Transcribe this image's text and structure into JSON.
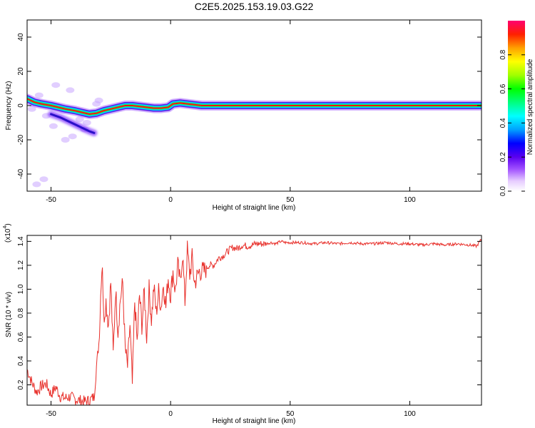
{
  "title": "C2E5.2025.153.19.03.G22",
  "colorbar": {
    "label": "Normalized spectral amplitude",
    "ticks": [
      "0.0",
      "0.2",
      "0.4",
      "0.6",
      "0.8"
    ],
    "tick_values": [
      0.0,
      0.2,
      0.4,
      0.6,
      0.8
    ],
    "range": [
      0,
      1
    ]
  },
  "chart_data": [
    {
      "type": "heatmap",
      "xlabel": "Height of straight line (km)",
      "ylabel": "Frequency (Hz)",
      "xlim": [
        -60,
        130
      ],
      "ylim": [
        -50,
        50
      ],
      "xticks": [
        -50,
        0,
        50,
        100
      ],
      "yticks": [
        -40,
        -20,
        0,
        20,
        40
      ],
      "xtick_labels": [
        "-50",
        "0",
        "50",
        "100"
      ],
      "ytick_labels": [
        "-40",
        "-20",
        "0",
        "20",
        "40"
      ],
      "ridge": {
        "x": [
          -60,
          -57,
          -54,
          -50,
          -47,
          -44,
          -40,
          -37,
          -34,
          -31,
          -28,
          -25,
          -22,
          -19,
          -16,
          -13,
          -10,
          -7,
          -4,
          -1,
          1,
          4,
          7,
          10,
          13,
          20,
          40,
          60,
          80,
          100,
          130
        ],
        "y": [
          4,
          2,
          1,
          0,
          -1,
          -2,
          -3,
          -4,
          -5,
          -4.5,
          -3,
          -2,
          -1,
          0,
          0,
          -0.5,
          -1,
          -1.5,
          -1.5,
          -1,
          1,
          1.5,
          1,
          0.5,
          0,
          0,
          0,
          0,
          0,
          0,
          0
        ]
      },
      "secondary_branch": {
        "x": [
          -50,
          -46,
          -43,
          -40,
          -37,
          -34,
          -32
        ],
        "y": [
          -5,
          -7,
          -9,
          -11,
          -13,
          -15,
          -16
        ]
      },
      "scatter_blobs": {
        "x": [
          -58,
          -55,
          -52,
          -49,
          -45,
          -42,
          -38,
          -36,
          -33,
          -30,
          -27,
          -56,
          -53,
          -48,
          -44,
          -41,
          -35,
          -31
        ],
        "y": [
          -2,
          6,
          -6,
          -12,
          -3,
          9,
          -8,
          -14,
          -4,
          3,
          -2,
          -46,
          -43,
          12,
          -20,
          -18,
          -10,
          1
        ]
      }
    },
    {
      "type": "line",
      "xlabel": "Height of straight line (km)",
      "ylabel": "SNR (10 * v/v)",
      "y_multiplier_label": "(x10",
      "y_multiplier_exp": "4",
      "y_multiplier_close": ")",
      "xlim": [
        -60,
        130
      ],
      "ylim": [
        0.03,
        1.45
      ],
      "xticks": [
        -50,
        0,
        50,
        100
      ],
      "yticks": [
        0.2,
        0.4,
        0.6,
        0.8,
        1.0,
        1.2,
        1.4
      ],
      "xtick_labels": [
        "-50",
        "0",
        "50",
        "100"
      ],
      "ytick_labels": [
        "0.2",
        "0.4",
        "0.6",
        "0.8",
        "1.0",
        "1.2",
        "1.4"
      ],
      "series": [
        {
          "color": "#e8312c",
          "x": [
            -60,
            -58,
            -56,
            -54,
            -52,
            -50,
            -48,
            -46,
            -44,
            -42,
            -40,
            -38,
            -36,
            -34,
            -32,
            -31,
            -30,
            -29.5,
            -29,
            -28.5,
            -28,
            -27,
            -26,
            -25,
            -24,
            -23,
            -22,
            -21,
            -20,
            -19,
            -18,
            -17,
            -16,
            -15,
            -14,
            -13,
            -12,
            -11,
            -10,
            -9,
            -8,
            -7,
            -6,
            -5,
            -4,
            -3,
            -2,
            -1,
            0,
            1,
            2,
            3,
            4,
            5,
            6,
            7,
            8,
            9,
            10,
            12,
            14,
            16,
            18,
            20,
            22,
            24,
            26,
            28,
            30,
            32,
            34,
            36,
            38,
            40,
            42,
            44,
            46,
            48,
            50,
            55,
            60,
            65,
            70,
            75,
            80,
            85,
            90,
            95,
            100,
            105,
            110,
            115,
            120,
            125,
            128,
            130
          ],
          "y": [
            0.33,
            0.22,
            0.14,
            0.19,
            0.21,
            0.12,
            0.18,
            0.1,
            0.09,
            0.1,
            0.08,
            0.07,
            0.06,
            0.07,
            0.1,
            0.35,
            0.55,
            0.8,
            1.1,
            1.23,
            0.75,
            0.9,
            0.7,
            1.06,
            0.45,
            1.0,
            0.65,
            0.92,
            1.05,
            0.5,
            0.35,
            0.7,
            0.2,
            0.9,
            0.55,
            0.95,
            0.7,
            0.98,
            0.6,
            1.0,
            0.75,
            1.02,
            0.8,
            0.98,
            0.85,
            1.05,
            0.85,
            1.1,
            0.95,
            1.15,
            0.98,
            1.2,
            1.05,
            1.3,
            0.9,
            1.33,
            1.12,
            1.26,
            1.05,
            1.15,
            1.15,
            1.2,
            1.2,
            1.26,
            1.28,
            1.32,
            1.35,
            1.34,
            1.37,
            1.36,
            1.37,
            1.38,
            1.38,
            1.38,
            1.39,
            1.38,
            1.4,
            1.39,
            1.39,
            1.39,
            1.38,
            1.39,
            1.38,
            1.39,
            1.38,
            1.38,
            1.39,
            1.38,
            1.38,
            1.37,
            1.38,
            1.37,
            1.38,
            1.37,
            1.36,
            1.42
          ]
        }
      ]
    }
  ]
}
